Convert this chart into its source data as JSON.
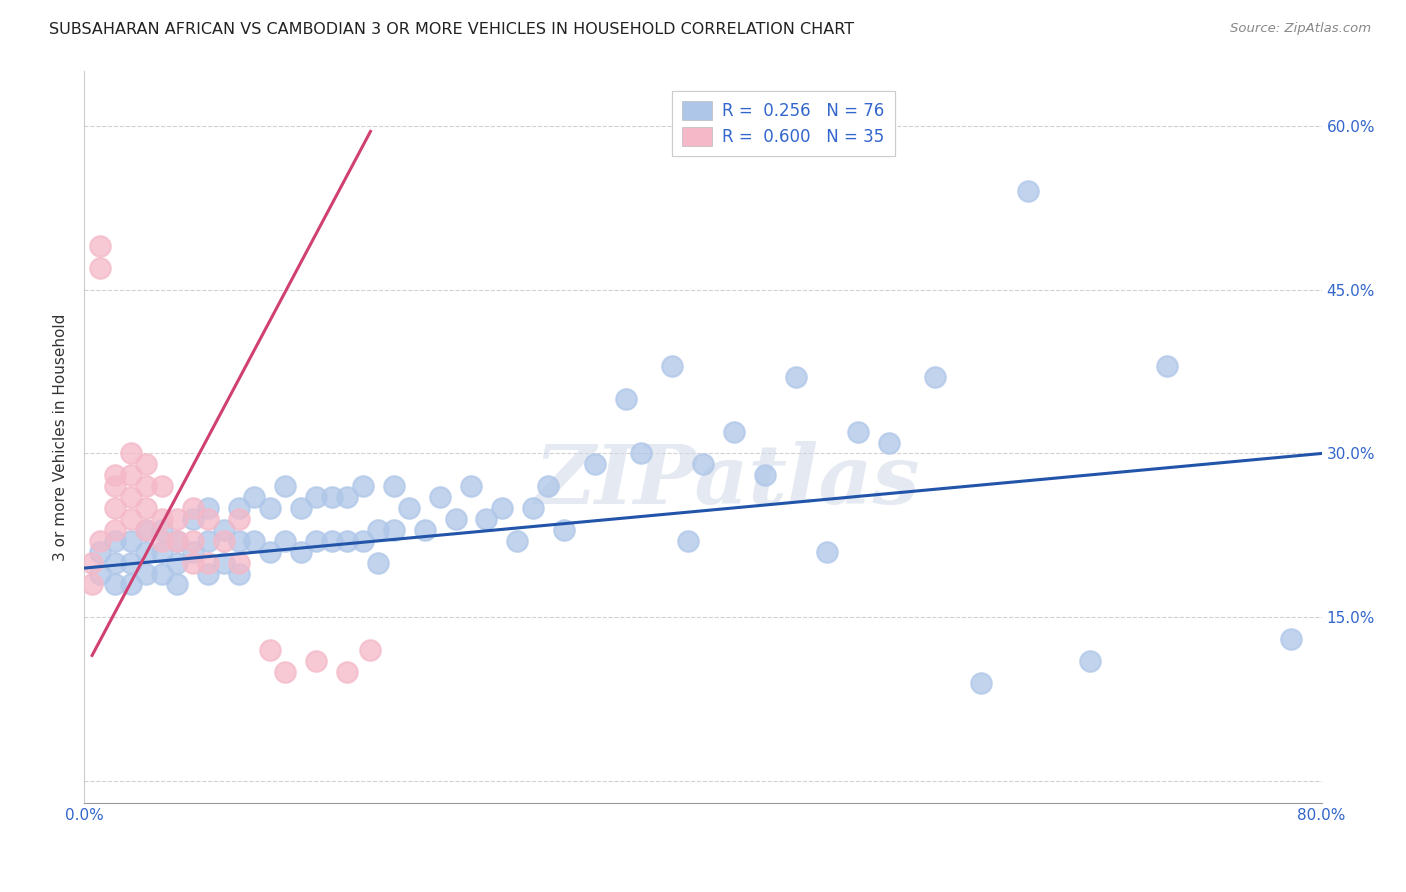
{
  "title": "SUBSAHARAN AFRICAN VS CAMBODIAN 3 OR MORE VEHICLES IN HOUSEHOLD CORRELATION CHART",
  "source": "Source: ZipAtlas.com",
  "ylabel": "3 or more Vehicles in Household",
  "xlim": [
    0.0,
    0.8
  ],
  "ylim": [
    -0.02,
    0.65
  ],
  "xticks": [
    0.0,
    0.1,
    0.2,
    0.3,
    0.4,
    0.5,
    0.6,
    0.7,
    0.8
  ],
  "xticklabels": [
    "0.0%",
    "",
    "",
    "",
    "",
    "",
    "",
    "",
    "80.0%"
  ],
  "ytick_positions": [
    0.0,
    0.15,
    0.3,
    0.45,
    0.6
  ],
  "watermark": "ZIPatlas",
  "legend_R_blue": "0.256",
  "legend_N_blue": "76",
  "legend_R_pink": "0.600",
  "legend_N_pink": "35",
  "blue_color": "#aec6e8",
  "pink_color": "#f4b8c8",
  "blue_line_color": "#2255aa",
  "pink_line_color": "#d04070",
  "legend_text_color": "#3366cc",
  "blue_line_x": [
    0.0,
    0.8
  ],
  "blue_line_y": [
    0.195,
    0.3
  ],
  "pink_line_x": [
    0.005,
    0.185
  ],
  "pink_line_y": [
    0.115,
    0.595
  ],
  "blue_scatter_x": [
    0.01,
    0.01,
    0.02,
    0.02,
    0.02,
    0.03,
    0.03,
    0.03,
    0.04,
    0.04,
    0.04,
    0.05,
    0.05,
    0.05,
    0.06,
    0.06,
    0.06,
    0.07,
    0.07,
    0.08,
    0.08,
    0.08,
    0.09,
    0.09,
    0.1,
    0.1,
    0.1,
    0.11,
    0.11,
    0.12,
    0.12,
    0.13,
    0.13,
    0.14,
    0.14,
    0.15,
    0.15,
    0.16,
    0.16,
    0.17,
    0.17,
    0.18,
    0.18,
    0.19,
    0.19,
    0.2,
    0.2,
    0.21,
    0.22,
    0.23,
    0.24,
    0.25,
    0.26,
    0.27,
    0.28,
    0.29,
    0.3,
    0.31,
    0.33,
    0.35,
    0.36,
    0.38,
    0.39,
    0.4,
    0.42,
    0.44,
    0.46,
    0.48,
    0.5,
    0.52,
    0.55,
    0.58,
    0.61,
    0.65,
    0.7,
    0.78
  ],
  "blue_scatter_y": [
    0.21,
    0.19,
    0.22,
    0.2,
    0.18,
    0.22,
    0.2,
    0.18,
    0.23,
    0.21,
    0.19,
    0.23,
    0.21,
    0.19,
    0.22,
    0.2,
    0.18,
    0.24,
    0.21,
    0.25,
    0.22,
    0.19,
    0.23,
    0.2,
    0.25,
    0.22,
    0.19,
    0.26,
    0.22,
    0.25,
    0.21,
    0.27,
    0.22,
    0.25,
    0.21,
    0.26,
    0.22,
    0.26,
    0.22,
    0.26,
    0.22,
    0.27,
    0.22,
    0.23,
    0.2,
    0.27,
    0.23,
    0.25,
    0.23,
    0.26,
    0.24,
    0.27,
    0.24,
    0.25,
    0.22,
    0.25,
    0.27,
    0.23,
    0.29,
    0.35,
    0.3,
    0.38,
    0.22,
    0.29,
    0.32,
    0.28,
    0.37,
    0.21,
    0.32,
    0.31,
    0.37,
    0.09,
    0.54,
    0.11,
    0.38,
    0.13
  ],
  "pink_scatter_x": [
    0.005,
    0.005,
    0.01,
    0.01,
    0.01,
    0.02,
    0.02,
    0.02,
    0.02,
    0.03,
    0.03,
    0.03,
    0.03,
    0.04,
    0.04,
    0.04,
    0.04,
    0.05,
    0.05,
    0.05,
    0.06,
    0.06,
    0.07,
    0.07,
    0.07,
    0.08,
    0.08,
    0.09,
    0.1,
    0.1,
    0.12,
    0.13,
    0.15,
    0.17,
    0.185
  ],
  "pink_scatter_y": [
    0.2,
    0.18,
    0.49,
    0.47,
    0.22,
    0.28,
    0.27,
    0.25,
    0.23,
    0.3,
    0.28,
    0.26,
    0.24,
    0.29,
    0.27,
    0.25,
    0.23,
    0.27,
    0.24,
    0.22,
    0.24,
    0.22,
    0.25,
    0.22,
    0.2,
    0.24,
    0.2,
    0.22,
    0.24,
    0.2,
    0.12,
    0.1,
    0.11,
    0.1,
    0.12
  ]
}
